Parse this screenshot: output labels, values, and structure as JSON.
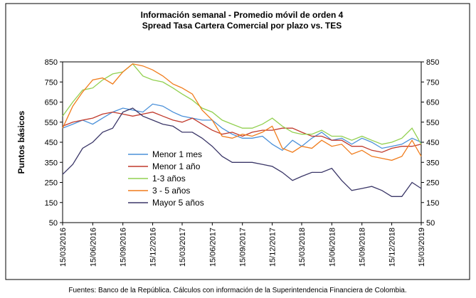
{
  "chart_data": {
    "type": "line",
    "title": "Información semanal - Promedio móvil de orden 4",
    "subtitle": "Spread Tasa Cartera Comercial por plazo vs. TES",
    "y_label": "Puntos básicos",
    "source": "Fuentes: Banco de la República. Cálculos con información de la Superintendencia Financiera de Colombia.",
    "x": [
      "15/03/2016",
      "15/04/2016",
      "15/05/2016",
      "15/06/2016",
      "15/07/2016",
      "15/08/2016",
      "15/09/2016",
      "15/10/2016",
      "15/11/2016",
      "15/12/2016",
      "15/01/2017",
      "15/02/2017",
      "15/03/2017",
      "15/04/2017",
      "15/05/2017",
      "15/06/2017",
      "15/07/2017",
      "15/08/2017",
      "15/09/2017",
      "15/10/2017",
      "15/11/2017",
      "15/12/2017",
      "15/01/2018",
      "15/02/2018",
      "15/03/2018",
      "15/04/2018",
      "15/05/2018",
      "15/06/2018",
      "15/07/2018",
      "15/08/2018",
      "15/09/2018",
      "15/10/2018",
      "15/11/2018",
      "15/12/2018",
      "15/01/2019",
      "15/02/2019",
      "15/03/2019"
    ],
    "series": [
      {
        "name": "Menor 1 mes",
        "color": "#4a90d9",
        "values": [
          520,
          540,
          560,
          540,
          570,
          600,
          620,
          610,
          600,
          640,
          630,
          600,
          580,
          570,
          560,
          560,
          520,
          490,
          470,
          470,
          480,
          440,
          410,
          460,
          430,
          470,
          500,
          460,
          470,
          440,
          470,
          450,
          420,
          430,
          440,
          470,
          450
        ]
      },
      {
        "name": "Menor 1 año",
        "color": "#c0392b",
        "values": [
          530,
          550,
          560,
          570,
          590,
          600,
          590,
          580,
          590,
          600,
          580,
          560,
          550,
          570,
          540,
          510,
          490,
          500,
          480,
          500,
          510,
          510,
          520,
          520,
          500,
          480,
          480,
          460,
          460,
          430,
          430,
          410,
          400,
          420,
          430,
          430,
          440
        ]
      },
      {
        "name": "1-3 años",
        "color": "#92d050",
        "values": [
          580,
          650,
          710,
          720,
          760,
          790,
          800,
          840,
          780,
          760,
          750,
          720,
          690,
          660,
          620,
          600,
          560,
          540,
          520,
          520,
          540,
          570,
          530,
          500,
          490,
          490,
          510,
          480,
          480,
          460,
          480,
          460,
          440,
          450,
          470,
          520,
          440
        ]
      },
      {
        "name": "3 - 5 años",
        "color": "#f07c1c",
        "values": [
          520,
          630,
          700,
          760,
          770,
          740,
          800,
          840,
          830,
          810,
          780,
          740,
          720,
          690,
          610,
          560,
          480,
          470,
          490,
          480,
          500,
          530,
          420,
          400,
          430,
          420,
          460,
          430,
          440,
          390,
          410,
          380,
          370,
          360,
          380,
          460,
          380
        ]
      },
      {
        "name": "Mayor 5 años",
        "color": "#3b3768",
        "values": [
          290,
          340,
          420,
          450,
          500,
          520,
          600,
          620,
          580,
          560,
          540,
          530,
          500,
          500,
          470,
          430,
          380,
          350,
          350,
          350,
          340,
          330,
          300,
          260,
          280,
          300,
          300,
          320,
          260,
          210,
          220,
          230,
          210,
          180,
          180,
          250,
          220
        ]
      }
    ],
    "xlim": [
      "15/03/2016",
      "15/03/2019"
    ],
    "xticks": [
      "15/03/2016",
      "15/06/2016",
      "15/09/2016",
      "15/12/2016",
      "15/03/2017",
      "15/06/2017",
      "15/09/2017",
      "15/12/2017",
      "15/03/2018",
      "15/06/2018",
      "15/09/2018",
      "15/12/2018",
      "15/03/2019"
    ],
    "ylim": [
      50,
      850
    ],
    "yticks": [
      50,
      150,
      250,
      350,
      450,
      550,
      650,
      750,
      850
    ],
    "y2lim": [
      50,
      850
    ],
    "y2ticks": [
      50,
      150,
      250,
      350,
      450,
      550,
      650,
      750,
      850
    ],
    "grid": false
  }
}
